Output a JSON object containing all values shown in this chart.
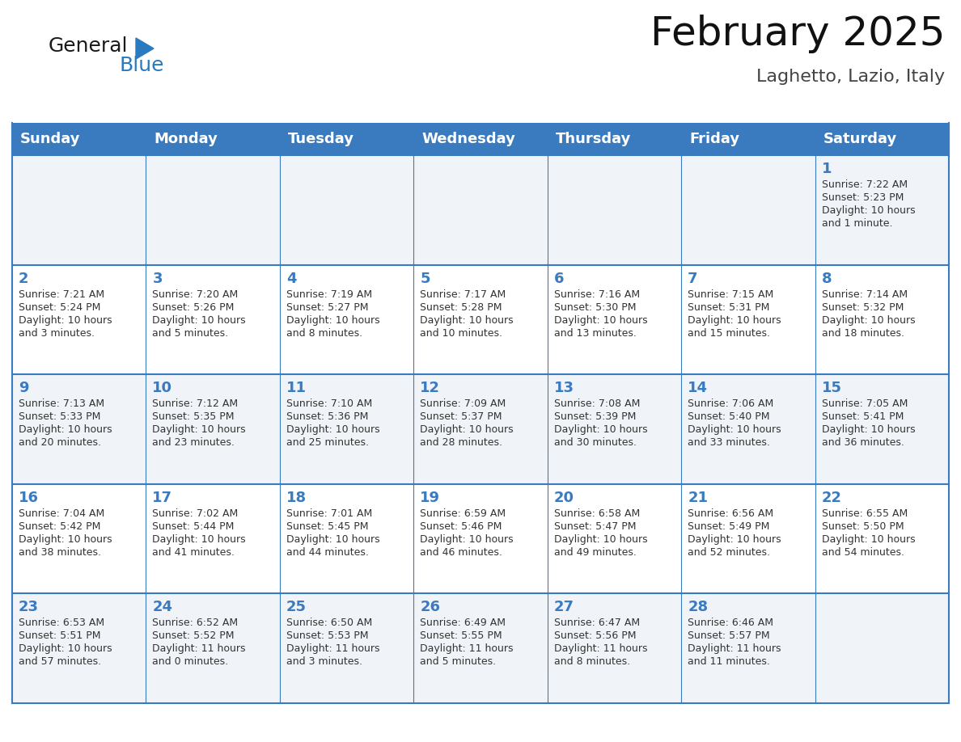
{
  "title": "February 2025",
  "subtitle": "Laghetto, Lazio, Italy",
  "header_color": "#3a7abf",
  "header_text_color": "#ffffff",
  "background_color": "#ffffff",
  "alt_row_color": "#f0f4f8",
  "border_color": "#3a7abf",
  "text_color": "#333333",
  "day_num_color": "#3a7abf",
  "days_of_week": [
    "Sunday",
    "Monday",
    "Tuesday",
    "Wednesday",
    "Thursday",
    "Friday",
    "Saturday"
  ],
  "weeks": [
    [
      {
        "day": "",
        "info": ""
      },
      {
        "day": "",
        "info": ""
      },
      {
        "day": "",
        "info": ""
      },
      {
        "day": "",
        "info": ""
      },
      {
        "day": "",
        "info": ""
      },
      {
        "day": "",
        "info": ""
      },
      {
        "day": "1",
        "info": "Sunrise: 7:22 AM\nSunset: 5:23 PM\nDaylight: 10 hours\nand 1 minute."
      }
    ],
    [
      {
        "day": "2",
        "info": "Sunrise: 7:21 AM\nSunset: 5:24 PM\nDaylight: 10 hours\nand 3 minutes."
      },
      {
        "day": "3",
        "info": "Sunrise: 7:20 AM\nSunset: 5:26 PM\nDaylight: 10 hours\nand 5 minutes."
      },
      {
        "day": "4",
        "info": "Sunrise: 7:19 AM\nSunset: 5:27 PM\nDaylight: 10 hours\nand 8 minutes."
      },
      {
        "day": "5",
        "info": "Sunrise: 7:17 AM\nSunset: 5:28 PM\nDaylight: 10 hours\nand 10 minutes."
      },
      {
        "day": "6",
        "info": "Sunrise: 7:16 AM\nSunset: 5:30 PM\nDaylight: 10 hours\nand 13 minutes."
      },
      {
        "day": "7",
        "info": "Sunrise: 7:15 AM\nSunset: 5:31 PM\nDaylight: 10 hours\nand 15 minutes."
      },
      {
        "day": "8",
        "info": "Sunrise: 7:14 AM\nSunset: 5:32 PM\nDaylight: 10 hours\nand 18 minutes."
      }
    ],
    [
      {
        "day": "9",
        "info": "Sunrise: 7:13 AM\nSunset: 5:33 PM\nDaylight: 10 hours\nand 20 minutes."
      },
      {
        "day": "10",
        "info": "Sunrise: 7:12 AM\nSunset: 5:35 PM\nDaylight: 10 hours\nand 23 minutes."
      },
      {
        "day": "11",
        "info": "Sunrise: 7:10 AM\nSunset: 5:36 PM\nDaylight: 10 hours\nand 25 minutes."
      },
      {
        "day": "12",
        "info": "Sunrise: 7:09 AM\nSunset: 5:37 PM\nDaylight: 10 hours\nand 28 minutes."
      },
      {
        "day": "13",
        "info": "Sunrise: 7:08 AM\nSunset: 5:39 PM\nDaylight: 10 hours\nand 30 minutes."
      },
      {
        "day": "14",
        "info": "Sunrise: 7:06 AM\nSunset: 5:40 PM\nDaylight: 10 hours\nand 33 minutes."
      },
      {
        "day": "15",
        "info": "Sunrise: 7:05 AM\nSunset: 5:41 PM\nDaylight: 10 hours\nand 36 minutes."
      }
    ],
    [
      {
        "day": "16",
        "info": "Sunrise: 7:04 AM\nSunset: 5:42 PM\nDaylight: 10 hours\nand 38 minutes."
      },
      {
        "day": "17",
        "info": "Sunrise: 7:02 AM\nSunset: 5:44 PM\nDaylight: 10 hours\nand 41 minutes."
      },
      {
        "day": "18",
        "info": "Sunrise: 7:01 AM\nSunset: 5:45 PM\nDaylight: 10 hours\nand 44 minutes."
      },
      {
        "day": "19",
        "info": "Sunrise: 6:59 AM\nSunset: 5:46 PM\nDaylight: 10 hours\nand 46 minutes."
      },
      {
        "day": "20",
        "info": "Sunrise: 6:58 AM\nSunset: 5:47 PM\nDaylight: 10 hours\nand 49 minutes."
      },
      {
        "day": "21",
        "info": "Sunrise: 6:56 AM\nSunset: 5:49 PM\nDaylight: 10 hours\nand 52 minutes."
      },
      {
        "day": "22",
        "info": "Sunrise: 6:55 AM\nSunset: 5:50 PM\nDaylight: 10 hours\nand 54 minutes."
      }
    ],
    [
      {
        "day": "23",
        "info": "Sunrise: 6:53 AM\nSunset: 5:51 PM\nDaylight: 10 hours\nand 57 minutes."
      },
      {
        "day": "24",
        "info": "Sunrise: 6:52 AM\nSunset: 5:52 PM\nDaylight: 11 hours\nand 0 minutes."
      },
      {
        "day": "25",
        "info": "Sunrise: 6:50 AM\nSunset: 5:53 PM\nDaylight: 11 hours\nand 3 minutes."
      },
      {
        "day": "26",
        "info": "Sunrise: 6:49 AM\nSunset: 5:55 PM\nDaylight: 11 hours\nand 5 minutes."
      },
      {
        "day": "27",
        "info": "Sunrise: 6:47 AM\nSunset: 5:56 PM\nDaylight: 11 hours\nand 8 minutes."
      },
      {
        "day": "28",
        "info": "Sunrise: 6:46 AM\nSunset: 5:57 PM\nDaylight: 11 hours\nand 11 minutes."
      },
      {
        "day": "",
        "info": ""
      }
    ]
  ],
  "logo_text1": "General",
  "logo_text2": "Blue",
  "logo_color1": "#1a1a1a",
  "logo_color2": "#2a7abf",
  "title_fontsize": 36,
  "subtitle_fontsize": 16,
  "header_fontsize": 13,
  "day_num_fontsize": 13,
  "cell_text_fontsize": 9,
  "logo_fontsize": 18
}
